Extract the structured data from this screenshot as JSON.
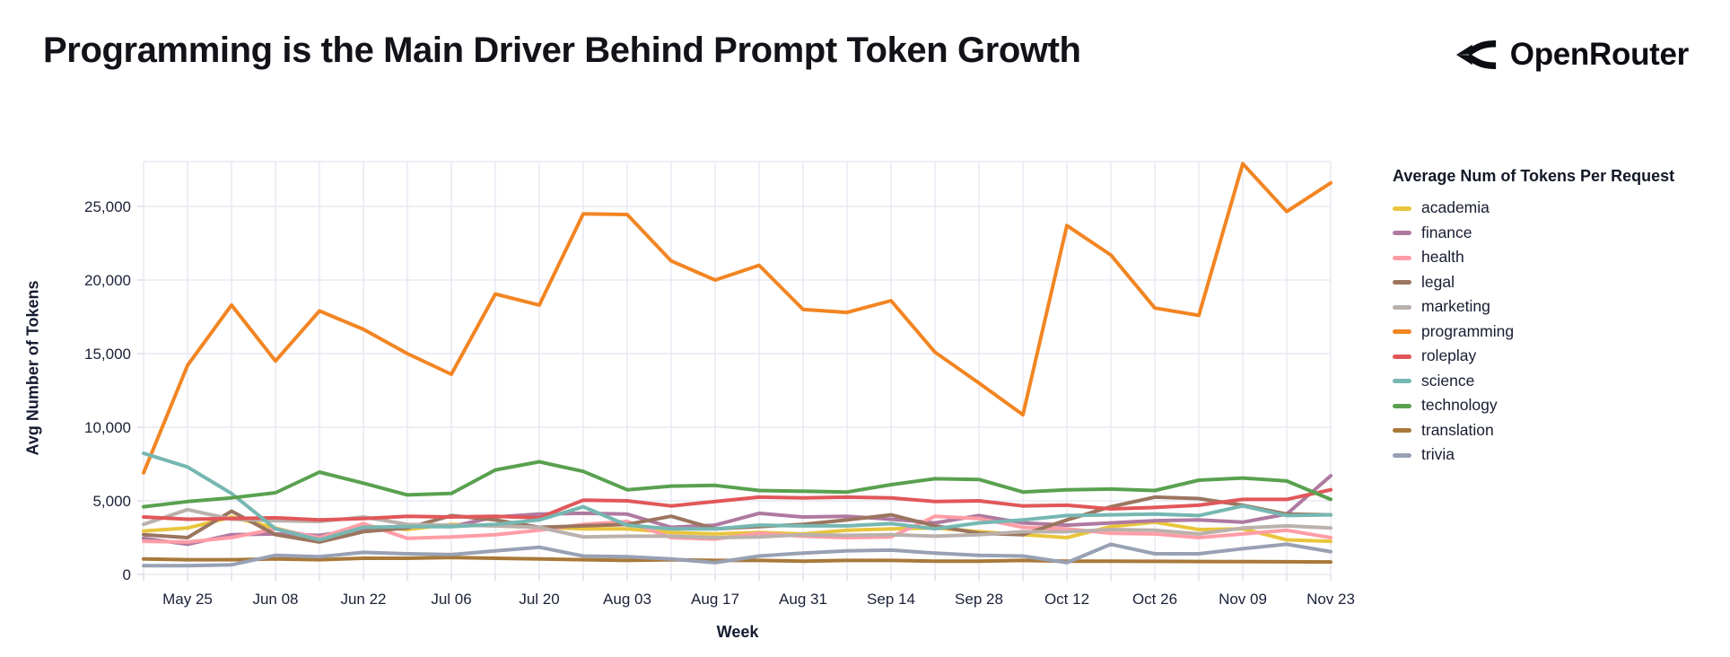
{
  "header": {
    "title": "Programming is the Main Driver Behind Prompt Token Growth",
    "brand": "OpenRouter"
  },
  "chart_data": {
    "type": "line",
    "title": "Programming is the Main Driver Behind Prompt Token Growth",
    "xlabel": "Week",
    "ylabel": "Avg Number of Tokens",
    "legend_title": "Average Num of Tokens Per Request",
    "legend_position": "right",
    "grid": true,
    "ylim": [
      0,
      28100
    ],
    "y_ticks": [
      {
        "value": 0,
        "label": "0"
      },
      {
        "value": 5000,
        "label": "5,000"
      },
      {
        "value": 10000,
        "label": "10,000"
      },
      {
        "value": 15000,
        "label": "15,000"
      },
      {
        "value": 20000,
        "label": "20,000"
      },
      {
        "value": 25000,
        "label": "25,000"
      }
    ],
    "x": [
      "May 18",
      "May 25",
      "Jun 01",
      "Jun 08",
      "Jun 15",
      "Jun 22",
      "Jun 29",
      "Jul 06",
      "Jul 13",
      "Jul 20",
      "Jul 27",
      "Aug 03",
      "Aug 10",
      "Aug 17",
      "Aug 24",
      "Aug 31",
      "Sep 07",
      "Sep 14",
      "Sep 21",
      "Sep 28",
      "Oct 05",
      "Oct 12",
      "Oct 19",
      "Oct 26",
      "Nov 02",
      "Nov 09",
      "Nov 16",
      "Nov 23"
    ],
    "x_ticks": [
      {
        "index": 1,
        "label": "May 25"
      },
      {
        "index": 3,
        "label": "Jun 08"
      },
      {
        "index": 5,
        "label": "Jun 22"
      },
      {
        "index": 7,
        "label": "Jul 06"
      },
      {
        "index": 9,
        "label": "Jul 20"
      },
      {
        "index": 11,
        "label": "Aug 03"
      },
      {
        "index": 13,
        "label": "Aug 17"
      },
      {
        "index": 15,
        "label": "Aug 31"
      },
      {
        "index": 17,
        "label": "Sep 14"
      },
      {
        "index": 19,
        "label": "Sep 28"
      },
      {
        "index": 21,
        "label": "Oct 12"
      },
      {
        "index": 23,
        "label": "Oct 26"
      },
      {
        "index": 25,
        "label": "Nov 09"
      },
      {
        "index": 27,
        "label": "Nov 23"
      }
    ],
    "series": [
      {
        "name": "academia",
        "color": "#e9c53d",
        "values": [
          2950,
          3150,
          3900,
          3150,
          2400,
          3300,
          3050,
          3400,
          3300,
          3200,
          3100,
          3100,
          2850,
          2750,
          2850,
          2750,
          3000,
          3100,
          3150,
          2900,
          2700,
          2500,
          3250,
          3550,
          3050,
          3100,
          2350,
          2250
        ]
      },
      {
        "name": "finance",
        "color": "#af7aa1",
        "values": [
          2450,
          2050,
          2700,
          2750,
          2650,
          3100,
          3300,
          3250,
          3900,
          4100,
          4150,
          4100,
          3200,
          3350,
          4150,
          3900,
          3950,
          3750,
          3500,
          4000,
          3500,
          3350,
          3500,
          3650,
          3700,
          3550,
          4100,
          6700
        ]
      },
      {
        "name": "health",
        "color": "#ff9da7",
        "values": [
          2250,
          2200,
          2500,
          3100,
          2500,
          3450,
          2450,
          2550,
          2700,
          3000,
          3400,
          3600,
          2500,
          2400,
          2800,
          2600,
          2500,
          2550,
          3950,
          3800,
          3200,
          3100,
          2800,
          2750,
          2500,
          2750,
          3000,
          2500
        ]
      },
      {
        "name": "legal",
        "color": "#9c755f",
        "values": [
          2700,
          2500,
          4300,
          2700,
          2200,
          2900,
          3150,
          4000,
          3700,
          3200,
          3300,
          3400,
          3950,
          3100,
          3250,
          3400,
          3700,
          4050,
          3300,
          2800,
          2700,
          3700,
          4600,
          5250,
          5150,
          4700,
          4100,
          4050
        ]
      },
      {
        "name": "marketing",
        "color": "#bab0ac",
        "values": [
          3400,
          4400,
          3750,
          3650,
          3600,
          3900,
          3400,
          3350,
          3300,
          3200,
          2550,
          2600,
          2600,
          2500,
          2550,
          2700,
          2650,
          2700,
          2600,
          2700,
          2900,
          2900,
          3050,
          3000,
          2750,
          3150,
          3300,
          3150
        ]
      },
      {
        "name": "programming",
        "color": "#f28522",
        "values": [
          6900,
          14200,
          18300,
          14500,
          17900,
          16650,
          15000,
          13600,
          19050,
          18300,
          24500,
          24450,
          21300,
          20000,
          21000,
          18000,
          17800,
          18600,
          15100,
          13000,
          10850,
          23700,
          21700,
          18100,
          17600,
          27900,
          24650,
          26600
        ]
      },
      {
        "name": "roleplay",
        "color": "#e15759",
        "values": [
          3900,
          3750,
          3800,
          3850,
          3700,
          3800,
          3950,
          3900,
          3950,
          3850,
          5050,
          5000,
          4650,
          4950,
          5250,
          5200,
          5250,
          5200,
          4950,
          5000,
          4650,
          4700,
          4450,
          4550,
          4700,
          5100,
          5100,
          5750
        ]
      },
      {
        "name": "science",
        "color": "#76b7b2",
        "values": [
          8230,
          7300,
          5500,
          3100,
          2350,
          3200,
          3250,
          3250,
          3400,
          3700,
          4600,
          3350,
          3100,
          3100,
          3350,
          3300,
          3300,
          3450,
          3100,
          3500,
          3700,
          4000,
          4050,
          4100,
          4000,
          4650,
          4000,
          4050
        ]
      },
      {
        "name": "technology",
        "color": "#59a14f",
        "values": [
          4600,
          4950,
          5200,
          5550,
          6950,
          6200,
          5400,
          5500,
          7100,
          7650,
          7000,
          5750,
          6000,
          6050,
          5700,
          5650,
          5600,
          6100,
          6500,
          6450,
          5600,
          5750,
          5800,
          5700,
          6400,
          6550,
          6350,
          5100
        ]
      },
      {
        "name": "translation",
        "color": "#a9793a",
        "values": [
          1050,
          1000,
          1000,
          1050,
          1000,
          1100,
          1100,
          1150,
          1100,
          1050,
          1000,
          950,
          1000,
          950,
          950,
          900,
          950,
          950,
          900,
          900,
          950,
          900,
          900,
          890,
          880,
          870,
          860,
          850
        ]
      },
      {
        "name": "trivia",
        "color": "#98a1b4",
        "values": [
          600,
          600,
          650,
          1300,
          1200,
          1500,
          1400,
          1350,
          1600,
          1850,
          1250,
          1200,
          1050,
          800,
          1250,
          1450,
          1600,
          1650,
          1450,
          1300,
          1250,
          800,
          2050,
          1400,
          1400,
          1750,
          2050,
          1550
        ]
      }
    ],
    "colors": {
      "grid": "#e9e9f2",
      "tick": "#dcdde8",
      "tick_text": "#1b2138"
    }
  }
}
